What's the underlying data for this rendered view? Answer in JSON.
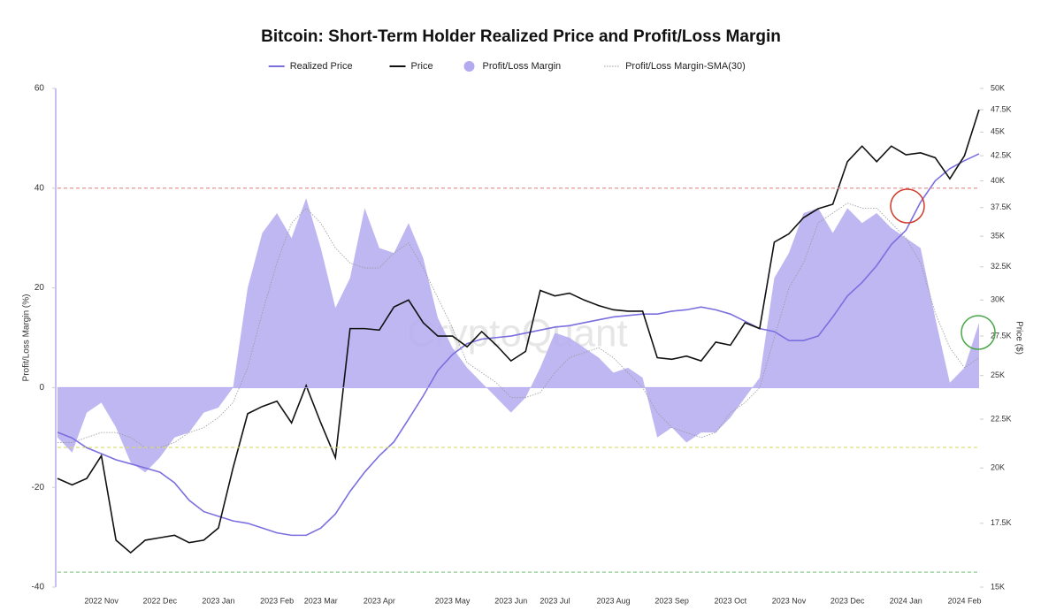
{
  "chart_data": {
    "type": "combo",
    "title": "Bitcoin: Short-Term Holder Realized Price and Profit/Loss Margin",
    "watermark": "CryptoQuant",
    "ylabel": "Profit/Loss Margin (%)",
    "y2label": "Price ($)",
    "categories": [
      null,
      null,
      null,
      "2022 Nov",
      null,
      null,
      null,
      "2022 Dec",
      null,
      null,
      null,
      "2023 Jan",
      null,
      null,
      null,
      "2023 Feb",
      null,
      null,
      "2023 Mar",
      null,
      null,
      null,
      "2023 Apr",
      null,
      null,
      null,
      null,
      "2023 May",
      null,
      null,
      null,
      "2023 Jun",
      null,
      null,
      "2023 Jul",
      null,
      null,
      null,
      "2023 Aug",
      null,
      null,
      null,
      "2023 Sep",
      null,
      null,
      null,
      "2023 Oct",
      null,
      null,
      null,
      "2023 Nov",
      null,
      null,
      null,
      "2023 Dec",
      null,
      null,
      null,
      "2024 Jan",
      null,
      null,
      null,
      "2024 Feb",
      null
    ],
    "ylim": [
      -40,
      60
    ],
    "yticks": [
      -40,
      -20,
      0,
      20,
      40,
      60
    ],
    "y2lim": [
      15000,
      50000
    ],
    "y2log": true,
    "y2ticks": [
      {
        "value": 15000,
        "label": "15K"
      },
      {
        "value": 17500,
        "label": "17.5K"
      },
      {
        "value": 20000,
        "label": "20K"
      },
      {
        "value": 22500,
        "label": "22.5K"
      },
      {
        "value": 25000,
        "label": "25K"
      },
      {
        "value": 27500,
        "label": "27.5K"
      },
      {
        "value": 30000,
        "label": "30K"
      },
      {
        "value": 32500,
        "label": "32.5K"
      },
      {
        "value": 35000,
        "label": "35K"
      },
      {
        "value": 37500,
        "label": "37.5K"
      },
      {
        "value": 40000,
        "label": "40K"
      },
      {
        "value": 42500,
        "label": "42.5K"
      },
      {
        "value": 45000,
        "label": "45K"
      },
      {
        "value": 47500,
        "label": "47.5K"
      },
      {
        "value": 50000,
        "label": "50K"
      }
    ],
    "hlines": [
      {
        "value": 40,
        "color": "#e08b8b"
      },
      {
        "value": -12,
        "color": "#d9d96a"
      },
      {
        "value": -37,
        "color": "#7cc47c"
      }
    ],
    "series": [
      {
        "name": "Realized Price",
        "kind": "line",
        "axis": "y2",
        "color": "#7b6fe0",
        "values": [
          21800,
          21500,
          21000,
          20700,
          20400,
          20200,
          20000,
          19800,
          19300,
          18500,
          18000,
          17800,
          17600,
          17500,
          17300,
          17100,
          17000,
          17000,
          17300,
          17900,
          18900,
          19800,
          20600,
          21300,
          22500,
          23800,
          25300,
          26300,
          27000,
          27300,
          27400,
          27500,
          27700,
          27900,
          28100,
          28200,
          28400,
          28600,
          28800,
          28900,
          29000,
          29000,
          29200,
          29300,
          29500,
          29300,
          29000,
          28500,
          28000,
          27800,
          27200,
          27200,
          27500,
          28800,
          30300,
          31300,
          32600,
          34300,
          35500,
          38000,
          40000,
          41200,
          42000,
          42700
        ]
      },
      {
        "name": "Price",
        "kind": "line",
        "axis": "y2",
        "color": "#111111",
        "values": [
          19500,
          19200,
          19500,
          20600,
          16800,
          16300,
          16800,
          16900,
          17000,
          16700,
          16800,
          17300,
          20000,
          22800,
          23200,
          23500,
          22300,
          24400,
          22300,
          20500,
          28000,
          28000,
          27900,
          29500,
          30000,
          28400,
          27500,
          27500,
          26800,
          27800,
          26900,
          25900,
          26500,
          30700,
          30300,
          30500,
          30000,
          29600,
          29300,
          29200,
          29200,
          26100,
          26000,
          26200,
          25900,
          27100,
          26900,
          28400,
          28000,
          34500,
          35200,
          36600,
          37400,
          37800,
          41900,
          43500,
          41900,
          43500,
          42600,
          42800,
          42300,
          40200,
          42500,
          47500
        ]
      },
      {
        "name": "Profit/Loss Margin",
        "kind": "area",
        "axis": "y",
        "color": "#b4aaf0",
        "values": [
          -10,
          -13,
          -5,
          -3,
          -8,
          -15,
          -17,
          -14,
          -10,
          -9,
          -5,
          -4,
          0,
          20,
          31,
          35,
          30,
          38,
          28,
          16,
          22,
          36,
          28,
          27,
          33,
          26,
          14,
          8,
          4,
          1,
          -2,
          -5,
          -2,
          4,
          11,
          10,
          8,
          6,
          3,
          4,
          2,
          -10,
          -8,
          -11,
          -9,
          -9,
          -6,
          -2,
          2,
          22,
          27,
          35,
          36,
          31,
          36,
          33,
          35,
          32,
          30,
          28,
          14,
          1,
          4,
          13
        ]
      },
      {
        "name": "Profit/Loss Margin-SMA(30)",
        "kind": "dotted",
        "axis": "y",
        "color": "#999999",
        "values": [
          -11,
          -11,
          -10,
          -9,
          -9,
          -10,
          -12,
          -12,
          -11,
          -9,
          -8,
          -6,
          -3,
          4,
          15,
          25,
          33,
          36,
          33,
          28,
          25,
          24,
          24,
          27,
          29,
          24,
          18,
          12,
          5,
          3,
          1,
          -2,
          -2,
          -1,
          3,
          6,
          7,
          8,
          6,
          3,
          0,
          -5,
          -8,
          -9,
          -10,
          -9,
          -5,
          -3,
          0,
          10,
          20,
          25,
          33,
          35,
          37,
          36,
          36,
          33,
          30,
          25,
          15,
          8,
          4,
          6
        ]
      }
    ]
  }
}
